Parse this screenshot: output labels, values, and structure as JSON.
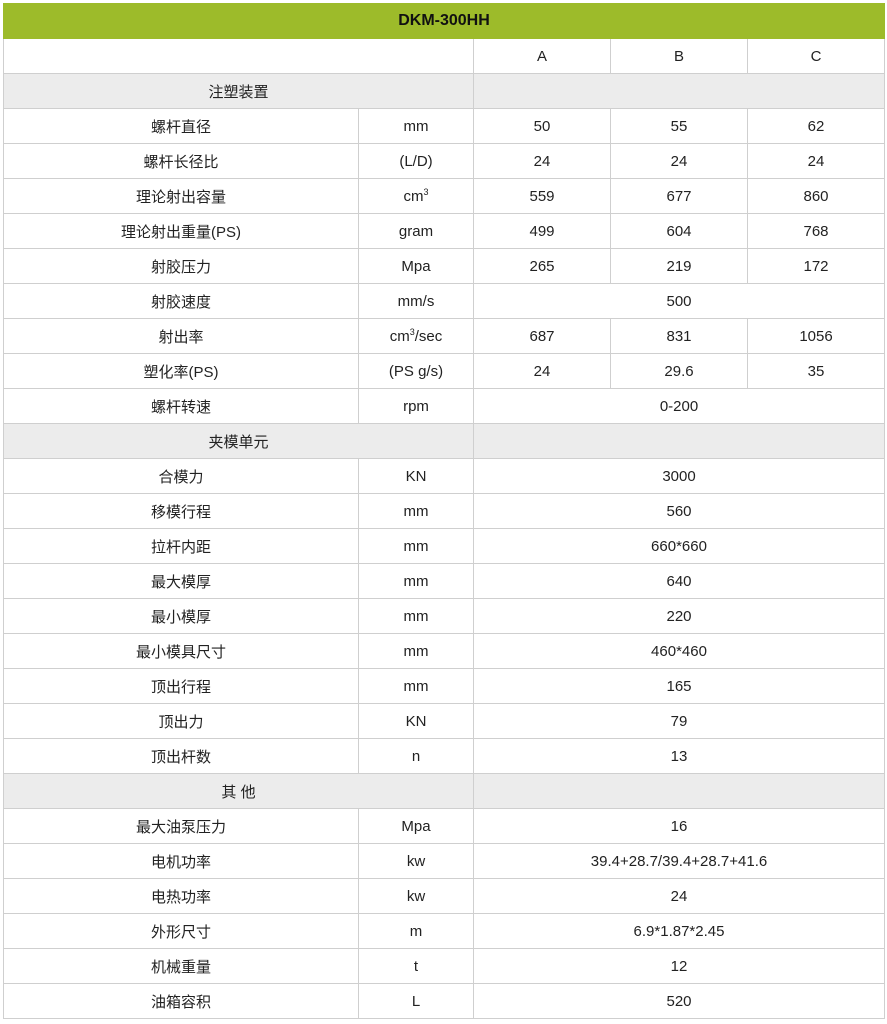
{
  "title": "DKM-300HH",
  "columns": [
    "A",
    "B",
    "C"
  ],
  "colors": {
    "header_bg": "#9dbb2a",
    "section_bg": "#ececec"
  },
  "sections": [
    {
      "label": "注塑装置",
      "rows": [
        {
          "name": "螺杆直径",
          "unit": "mm",
          "values": [
            "50",
            "55",
            "62"
          ]
        },
        {
          "name": "螺杆长径比",
          "unit": "(L/D)",
          "values": [
            "24",
            "24",
            "24"
          ]
        },
        {
          "name": "理论射出容量",
          "unit": "cm³",
          "values": [
            "559",
            "677",
            "860"
          ]
        },
        {
          "name": "理论射出重量(PS)",
          "unit": "gram",
          "values": [
            "499",
            "604",
            "768"
          ]
        },
        {
          "name": "射胶压力",
          "unit": "Mpa",
          "values": [
            "265",
            "219",
            "172"
          ]
        },
        {
          "name": "射胶速度",
          "unit": "mm/s",
          "value": "500"
        },
        {
          "name": "射出率",
          "unit": "cm³/sec",
          "values": [
            "687",
            "831",
            "1056"
          ]
        },
        {
          "name": "塑化率(PS)",
          "unit": "(PS g/s)",
          "values": [
            "24",
            "29.6",
            "35"
          ]
        },
        {
          "name": "螺杆转速",
          "unit": "rpm",
          "value": "0-200"
        }
      ]
    },
    {
      "label": "夹模单元",
      "rows": [
        {
          "name": "合模力",
          "unit": "KN",
          "value": "3000"
        },
        {
          "name": "移模行程",
          "unit": "mm",
          "value": "560"
        },
        {
          "name": "拉杆内距",
          "unit": "mm",
          "value": "660*660"
        },
        {
          "name": "最大模厚",
          "unit": "mm",
          "value": "640"
        },
        {
          "name": "最小模厚",
          "unit": "mm",
          "value": "220"
        },
        {
          "name": "最小模具尺寸",
          "unit": "mm",
          "value": "460*460"
        },
        {
          "name": "顶出行程",
          "unit": "mm",
          "value": "165"
        },
        {
          "name": "顶出力",
          "unit": "KN",
          "value": "79"
        },
        {
          "name": "顶出杆数",
          "unit": "n",
          "value": "13"
        }
      ]
    },
    {
      "label": "其 他",
      "rows": [
        {
          "name": "最大油泵压力",
          "unit": "Mpa",
          "value": "16"
        },
        {
          "name": "电机功率",
          "unit": "kw",
          "value": "39.4+28.7/39.4+28.7+41.6"
        },
        {
          "name": "电热功率",
          "unit": "kw",
          "value": "24"
        },
        {
          "name": "外形尺寸",
          "unit": "m",
          "value": "6.9*1.87*2.45"
        },
        {
          "name": "机械重量",
          "unit": "t",
          "value": "12"
        },
        {
          "name": "油箱容积",
          "unit": "L",
          "value": "520"
        }
      ]
    }
  ]
}
